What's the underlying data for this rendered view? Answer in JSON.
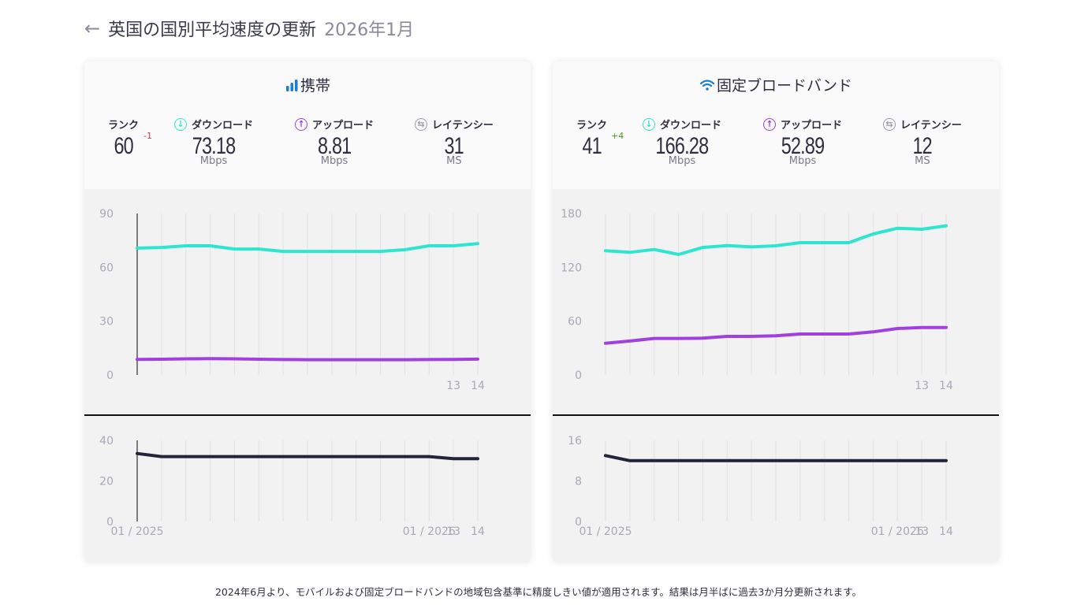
{
  "header": {
    "back_icon": "arrow-left-icon",
    "title": "英国の国別平均速度の更新",
    "date": "2026年1月"
  },
  "colors": {
    "download": "#2ee6d0",
    "upload": "#a040e0",
    "latency_line": "#22253a",
    "latency_icon": "#9a9aaa",
    "accent_blue": "#1a7fd4",
    "rank_down": "#e0304a",
    "rank_up": "#4a9a2a"
  },
  "mobile": {
    "title": "携帯",
    "icon": "signal-bars-icon",
    "rank_label": "ランク",
    "rank": "60",
    "rank_change": "-1",
    "download_label": "ダウンロード",
    "download": "73.18",
    "download_unit": "Mbps",
    "upload_label": "アップロード",
    "upload": "8.81",
    "upload_unit": "Mbps",
    "latency_label": "レイテンシー",
    "latency": "31",
    "latency_unit": "MS"
  },
  "fixed": {
    "title": "固定ブロードバンド",
    "icon": "wifi-icon",
    "rank_label": "ランク",
    "rank": "41",
    "rank_change": "+4",
    "download_label": "ダウンロード",
    "download": "166.28",
    "download_unit": "Mbps",
    "upload_label": "アップロード",
    "upload": "52.89",
    "upload_unit": "Mbps",
    "latency_label": "レイテンシー",
    "latency": "12",
    "latency_unit": "MS"
  },
  "footnote": "2024年6月より、モバイルおよび固定ブロードバンドの地域包含基準に精度しきい値が適用されます。結果は月半ばに過去3か月分更新されます。",
  "chart_data": [
    {
      "type": "line",
      "title": "携帯 speed",
      "x": [
        0,
        1,
        2,
        3,
        4,
        5,
        6,
        7,
        8,
        9,
        10,
        11,
        12,
        13,
        14
      ],
      "xtick_labels": {
        "13": "13",
        "14": "14"
      },
      "ylim": [
        0,
        90
      ],
      "yticks": [
        0,
        30,
        60,
        90
      ],
      "grid": "vertical",
      "series": [
        {
          "name": "ダウンロード",
          "color": "#2ee6d0",
          "values": [
            70.7,
            71.1,
            72.0,
            72.0,
            70.2,
            70.2,
            68.9,
            68.9,
            68.9,
            68.9,
            68.9,
            69.8,
            72.0,
            72.0,
            73.18
          ]
        },
        {
          "name": "アップロード",
          "color": "#a040e0",
          "values": [
            8.7,
            8.8,
            9.0,
            9.1,
            9.0,
            8.8,
            8.6,
            8.5,
            8.5,
            8.5,
            8.5,
            8.5,
            8.6,
            8.7,
            8.81
          ]
        }
      ]
    },
    {
      "type": "line",
      "title": "携帯 latency",
      "x": [
        0,
        1,
        2,
        3,
        4,
        5,
        6,
        7,
        8,
        9,
        10,
        11,
        12,
        13,
        14
      ],
      "xtick_labels": {
        "0": "01 / 2025",
        "12": "01 / 2026",
        "13": "13",
        "14": "14"
      },
      "ylim": [
        0,
        40
      ],
      "yticks": [
        0,
        20,
        40
      ],
      "grid": "vertical",
      "series": [
        {
          "name": "レイテンシー",
          "color": "#22253a",
          "values": [
            33.5,
            32,
            32,
            32,
            32,
            32,
            32,
            32,
            32,
            32,
            32,
            32,
            32,
            31,
            31
          ]
        }
      ]
    },
    {
      "type": "line",
      "title": "固定ブロードバンド speed",
      "x": [
        0,
        1,
        2,
        3,
        4,
        5,
        6,
        7,
        8,
        9,
        10,
        11,
        12,
        13,
        14
      ],
      "xtick_labels": {
        "13": "13",
        "14": "14"
      },
      "ylim": [
        0,
        180
      ],
      "yticks": [
        0,
        60,
        120,
        180
      ],
      "grid": "vertical",
      "series": [
        {
          "name": "ダウンロード",
          "color": "#2ee6d0",
          "values": [
            138.5,
            136.7,
            139.9,
            134.3,
            142.2,
            144.3,
            142.8,
            144.0,
            147.5,
            147.5,
            147.5,
            157.2,
            163.6,
            162.4,
            166.28
          ]
        },
        {
          "name": "アップロード",
          "color": "#a040e0",
          "values": [
            35.4,
            37.8,
            40.7,
            40.7,
            41.0,
            43.0,
            43.0,
            43.6,
            45.7,
            45.7,
            45.7,
            48.0,
            51.8,
            52.9,
            52.89
          ]
        }
      ]
    },
    {
      "type": "line",
      "title": "固定ブロードバンド latency",
      "x": [
        0,
        1,
        2,
        3,
        4,
        5,
        6,
        7,
        8,
        9,
        10,
        11,
        12,
        13,
        14
      ],
      "xtick_labels": {
        "0": "01 / 2025",
        "12": "01 / 2026",
        "13": "13",
        "14": "14"
      },
      "ylim": [
        0,
        16
      ],
      "yticks": [
        0,
        8,
        16
      ],
      "grid": "vertical",
      "series": [
        {
          "name": "レイテンシー",
          "color": "#22253a",
          "values": [
            13,
            12,
            12,
            12,
            12,
            12,
            12,
            12,
            12,
            12,
            12,
            12,
            12,
            12,
            12
          ]
        }
      ]
    }
  ]
}
